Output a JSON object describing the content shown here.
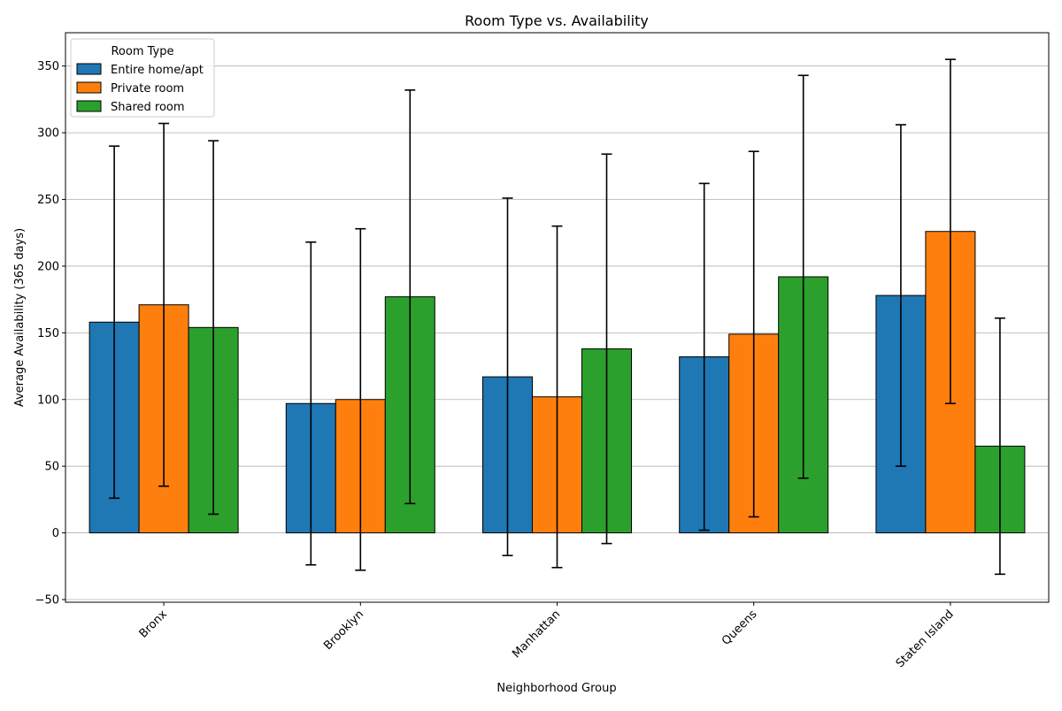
{
  "chart_data": {
    "type": "bar",
    "title": "Room Type vs. Availability",
    "xlabel": "Neighborhood Group",
    "ylabel": "Average Availability (365 days)",
    "ylim": [
      -52,
      375
    ],
    "yticks": [
      -50,
      0,
      50,
      100,
      150,
      200,
      250,
      300,
      350
    ],
    "grid": "horizontal",
    "legend": {
      "title": "Room Type",
      "placement": "top-left"
    },
    "categories": [
      "Bronx",
      "Brooklyn",
      "Manhattan",
      "Queens",
      "Staten Island"
    ],
    "series": [
      {
        "name": "Entire home/apt",
        "color": "#1f77b4",
        "values": [
          158,
          97,
          117,
          132,
          178
        ],
        "error": [
          132,
          121,
          134,
          130,
          128
        ]
      },
      {
        "name": "Private room",
        "color": "#ff7f0e",
        "values": [
          171,
          100,
          102,
          149,
          226
        ],
        "error": [
          136,
          128,
          128,
          137,
          129
        ]
      },
      {
        "name": "Shared room",
        "color": "#2ca02c",
        "values": [
          154,
          177,
          138,
          192,
          65
        ],
        "error": [
          140,
          155,
          146,
          151,
          96
        ]
      }
    ]
  }
}
